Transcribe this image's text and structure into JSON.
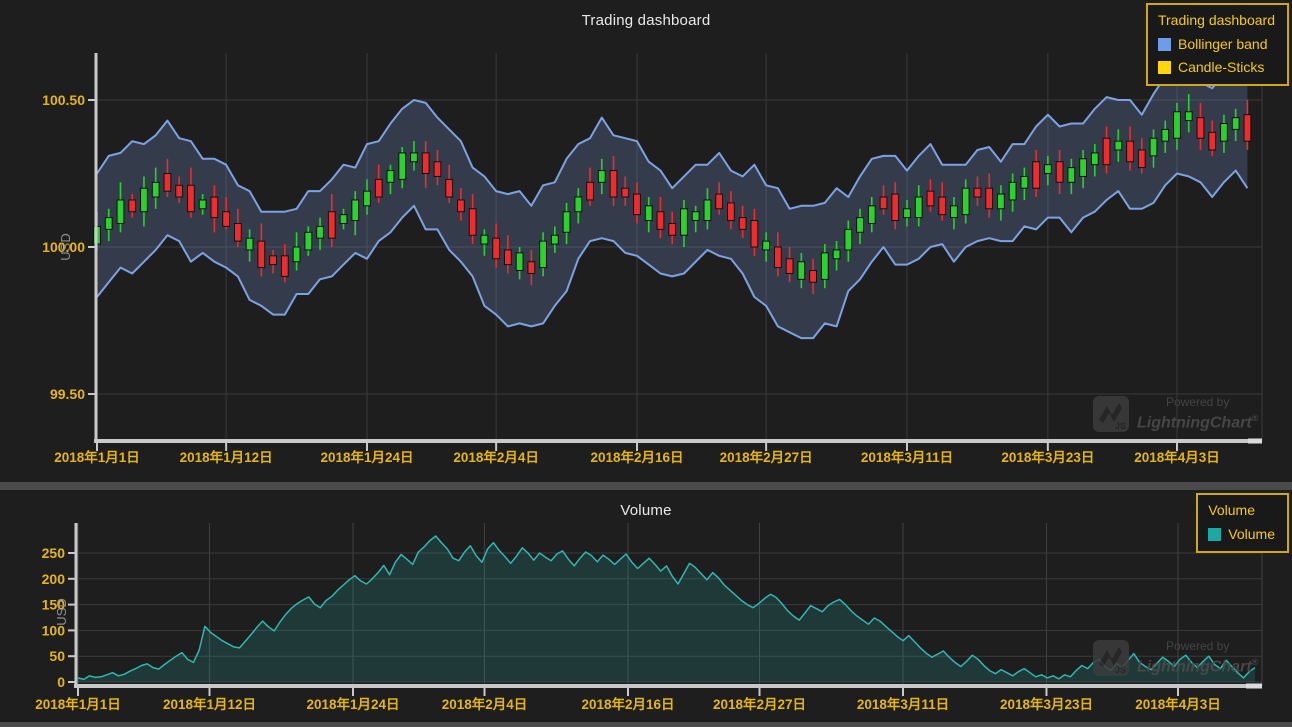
{
  "colors": {
    "page_bg": "#4a4a4a",
    "panel_bg": "#1e1e1e",
    "grid": "#3a3a3a",
    "grid_v": "#424242",
    "axis": "#c9c9c9",
    "tick_label": "#e5b512",
    "legend_text": "#f7ca0e",
    "legend_border": "#cfa90d",
    "title": "#e9e9e9",
    "usd_label": "#8f8f8f",
    "band_fill": "rgba(111,140,198,0.28)",
    "band_line": "#7da2e3",
    "candle_up": "#29d32b",
    "candle_down": "#f02b2b",
    "candle_border": "#101010",
    "volume_line": "#31b7b2",
    "volume_fill": "rgba(40,185,180,0.18)",
    "axis_endcap": "#dcdcdc"
  },
  "watermark": {
    "powered_by": "Powered by",
    "brand": "LightningChart",
    "registered": "®",
    "logo_text": "JS"
  },
  "top_chart": {
    "title": "Trading dashboard",
    "y_axis_label": "USD",
    "legend": {
      "title": "Trading dashboard",
      "items": [
        {
          "label": "Bollinger band",
          "color": "#6f9ce6"
        },
        {
          "label": "Candle-Sticks",
          "color": "#ffd60a"
        }
      ]
    }
  },
  "bottom_chart": {
    "title": "Volume",
    "y_axis_label": "USD",
    "legend": {
      "title": "Volume",
      "items": [
        {
          "label": "Volume",
          "color": "#1ba9a4"
        }
      ]
    }
  },
  "chart_data": [
    {
      "type": "candlestick",
      "title": "Trading dashboard",
      "ylabel": "USD",
      "series": [
        "Bollinger band",
        "Candle-Sticks"
      ],
      "x_ticks": {
        "labels": [
          "2018年1月1日",
          "2018年1月12日",
          "2018年1月24日",
          "2018年2月4日",
          "2018年2月16日",
          "2018年2月27日",
          "2018年3月11日",
          "2018年3月23日",
          "2018年4月3日"
        ],
        "days": [
          0,
          11,
          23,
          34,
          46,
          57,
          69,
          81,
          92
        ]
      },
      "y_ticks": {
        "labels": [
          "100.50",
          "100.00",
          "99.50"
        ],
        "values": [
          100.5,
          100.0,
          99.5
        ]
      },
      "ylim": [
        99.34,
        100.65
      ],
      "candles_ohlc": [
        [
          100.01,
          100.12,
          99.99,
          100.07
        ],
        [
          100.06,
          100.13,
          100.02,
          100.1
        ],
        [
          100.08,
          100.22,
          100.05,
          100.16
        ],
        [
          100.16,
          100.18,
          100.1,
          100.12
        ],
        [
          100.12,
          100.24,
          100.07,
          100.2
        ],
        [
          100.17,
          100.27,
          100.13,
          100.22
        ],
        [
          100.25,
          100.3,
          100.17,
          100.19
        ],
        [
          100.21,
          100.24,
          100.15,
          100.17
        ],
        [
          100.21,
          100.27,
          100.1,
          100.12
        ],
        [
          100.13,
          100.18,
          100.11,
          100.16
        ],
        [
          100.17,
          100.21,
          100.05,
          100.1
        ],
        [
          100.12,
          100.17,
          100.06,
          100.07
        ],
        [
          100.08,
          100.13,
          100.0,
          100.02
        ],
        [
          99.99,
          100.06,
          99.95,
          100.03
        ],
        [
          100.02,
          100.08,
          99.9,
          99.93
        ],
        [
          99.97,
          99.99,
          99.91,
          99.94
        ],
        [
          99.97,
          100.01,
          99.88,
          99.9
        ],
        [
          99.95,
          100.05,
          99.92,
          100.0
        ],
        [
          99.99,
          100.07,
          99.97,
          100.05
        ],
        [
          100.03,
          100.1,
          99.99,
          100.07
        ],
        [
          100.12,
          100.18,
          100.0,
          100.03
        ],
        [
          100.08,
          100.13,
          100.06,
          100.11
        ],
        [
          100.09,
          100.19,
          100.04,
          100.16
        ],
        [
          100.14,
          100.23,
          100.11,
          100.19
        ],
        [
          100.23,
          100.28,
          100.15,
          100.17
        ],
        [
          100.22,
          100.28,
          100.18,
          100.26
        ],
        [
          100.23,
          100.34,
          100.2,
          100.32
        ],
        [
          100.29,
          100.36,
          100.26,
          100.32
        ],
        [
          100.32,
          100.36,
          100.2,
          100.25
        ],
        [
          100.29,
          100.33,
          100.21,
          100.24
        ],
        [
          100.23,
          100.28,
          100.15,
          100.17
        ],
        [
          100.16,
          100.2,
          100.09,
          100.12
        ],
        [
          100.13,
          100.18,
          100.01,
          100.04
        ],
        [
          100.01,
          100.06,
          99.97,
          100.04
        ],
        [
          100.03,
          100.08,
          99.93,
          99.96
        ],
        [
          99.99,
          100.04,
          99.91,
          99.94
        ],
        [
          99.92,
          100.0,
          99.89,
          99.98
        ],
        [
          99.95,
          99.99,
          99.87,
          99.91
        ],
        [
          99.93,
          100.05,
          99.9,
          100.02
        ],
        [
          100.01,
          100.07,
          99.98,
          100.04
        ],
        [
          100.05,
          100.15,
          100.01,
          100.12
        ],
        [
          100.12,
          100.2,
          100.08,
          100.17
        ],
        [
          100.22,
          100.27,
          100.14,
          100.16
        ],
        [
          100.22,
          100.3,
          100.18,
          100.26
        ],
        [
          100.26,
          100.31,
          100.14,
          100.17
        ],
        [
          100.2,
          100.24,
          100.14,
          100.17
        ],
        [
          100.18,
          100.22,
          100.08,
          100.11
        ],
        [
          100.09,
          100.17,
          100.05,
          100.14
        ],
        [
          100.12,
          100.17,
          100.03,
          100.06
        ],
        [
          100.08,
          100.12,
          100.01,
          100.04
        ],
        [
          100.04,
          100.16,
          100.0,
          100.13
        ],
        [
          100.09,
          100.14,
          100.05,
          100.12
        ],
        [
          100.09,
          100.2,
          100.06,
          100.16
        ],
        [
          100.18,
          100.22,
          100.11,
          100.13
        ],
        [
          100.15,
          100.19,
          100.06,
          100.09
        ],
        [
          100.1,
          100.14,
          100.03,
          100.06
        ],
        [
          100.09,
          100.13,
          99.97,
          100.0
        ],
        [
          99.99,
          100.05,
          99.95,
          100.02
        ],
        [
          100.0,
          100.05,
          99.9,
          99.93
        ],
        [
          99.96,
          100.0,
          99.88,
          99.91
        ],
        [
          99.89,
          99.98,
          99.86,
          99.95
        ],
        [
          99.92,
          99.96,
          99.84,
          99.88
        ],
        [
          99.89,
          100.01,
          99.86,
          99.98
        ],
        [
          99.96,
          100.02,
          99.92,
          99.99
        ],
        [
          99.99,
          100.09,
          99.95,
          100.06
        ],
        [
          100.05,
          100.13,
          100.01,
          100.1
        ],
        [
          100.08,
          100.17,
          100.05,
          100.14
        ],
        [
          100.17,
          100.21,
          100.11,
          100.13
        ],
        [
          100.18,
          100.22,
          100.06,
          100.09
        ],
        [
          100.1,
          100.16,
          100.07,
          100.13
        ],
        [
          100.1,
          100.21,
          100.07,
          100.17
        ],
        [
          100.19,
          100.23,
          100.12,
          100.14
        ],
        [
          100.17,
          100.22,
          100.09,
          100.11
        ],
        [
          100.1,
          100.17,
          100.06,
          100.14
        ],
        [
          100.11,
          100.23,
          100.08,
          100.2
        ],
        [
          100.2,
          100.24,
          100.14,
          100.17
        ],
        [
          100.2,
          100.25,
          100.1,
          100.13
        ],
        [
          100.13,
          100.21,
          100.09,
          100.18
        ],
        [
          100.16,
          100.25,
          100.12,
          100.22
        ],
        [
          100.2,
          100.27,
          100.16,
          100.24
        ],
        [
          100.29,
          100.33,
          100.17,
          100.2
        ],
        [
          100.25,
          100.31,
          100.21,
          100.28
        ],
        [
          100.29,
          100.33,
          100.18,
          100.22
        ],
        [
          100.22,
          100.3,
          100.18,
          100.27
        ],
        [
          100.24,
          100.33,
          100.2,
          100.3
        ],
        [
          100.28,
          100.35,
          100.24,
          100.32
        ],
        [
          100.37,
          100.41,
          100.25,
          100.28
        ],
        [
          100.33,
          100.4,
          100.29,
          100.36
        ],
        [
          100.36,
          100.41,
          100.26,
          100.29
        ],
        [
          100.33,
          100.37,
          100.25,
          100.27
        ],
        [
          100.31,
          100.4,
          100.27,
          100.37
        ],
        [
          100.36,
          100.43,
          100.32,
          100.4
        ],
        [
          100.37,
          100.49,
          100.33,
          100.46
        ],
        [
          100.43,
          100.52,
          100.39,
          100.46
        ],
        [
          100.44,
          100.49,
          100.33,
          100.37
        ],
        [
          100.39,
          100.43,
          100.31,
          100.33
        ],
        [
          100.36,
          100.45,
          100.32,
          100.42
        ],
        [
          100.4,
          100.47,
          100.36,
          100.44
        ],
        [
          100.45,
          100.5,
          100.33,
          100.36
        ]
      ],
      "bollinger_upper": [
        100.25,
        100.31,
        100.32,
        100.36,
        100.35,
        100.38,
        100.43,
        100.37,
        100.36,
        100.3,
        100.3,
        100.28,
        100.21,
        100.19,
        100.12,
        100.12,
        100.12,
        100.13,
        100.19,
        100.19,
        100.23,
        100.28,
        100.27,
        100.35,
        100.36,
        100.42,
        100.47,
        100.5,
        100.49,
        100.44,
        100.4,
        100.36,
        100.27,
        100.24,
        100.19,
        100.18,
        100.19,
        100.14,
        100.21,
        100.22,
        100.3,
        100.35,
        100.37,
        100.44,
        100.38,
        100.37,
        100.36,
        100.29,
        100.26,
        100.2,
        100.24,
        100.28,
        100.28,
        100.32,
        100.26,
        100.24,
        100.28,
        100.21,
        100.2,
        100.13,
        100.14,
        100.14,
        100.15,
        100.2,
        100.17,
        100.24,
        100.3,
        100.31,
        100.31,
        100.26,
        100.31,
        100.35,
        100.28,
        100.28,
        100.28,
        100.33,
        100.34,
        100.29,
        100.35,
        100.35,
        100.41,
        100.45,
        100.41,
        100.42,
        100.42,
        100.47,
        100.51,
        100.5,
        100.5,
        100.45,
        100.52,
        100.58,
        100.58,
        100.63,
        100.56,
        100.54,
        100.59,
        100.59,
        100.59
      ],
      "bollinger_lower": [
        99.83,
        99.88,
        99.93,
        99.91,
        99.95,
        99.99,
        100.04,
        100.02,
        99.95,
        99.98,
        99.95,
        99.93,
        99.9,
        99.82,
        99.8,
        99.77,
        99.77,
        99.84,
        99.84,
        99.89,
        99.9,
        99.94,
        99.98,
        99.96,
        100.02,
        100.05,
        100.1,
        100.14,
        100.06,
        100.06,
        99.99,
        99.95,
        99.9,
        99.8,
        99.77,
        99.73,
        99.74,
        99.73,
        99.74,
        99.8,
        99.85,
        99.96,
        100.02,
        100.03,
        100.02,
        99.98,
        99.97,
        99.94,
        99.91,
        99.9,
        99.91,
        99.95,
        99.99,
        99.97,
        99.96,
        99.91,
        99.83,
        99.8,
        99.73,
        99.71,
        99.69,
        99.69,
        99.74,
        99.73,
        99.85,
        99.89,
        99.95,
        100.0,
        99.94,
        99.94,
        99.96,
        100.0,
        100.01,
        99.95,
        100.0,
        100.02,
        100.03,
        100.02,
        100.02,
        100.07,
        100.06,
        100.1,
        100.1,
        100.05,
        100.1,
        100.12,
        100.16,
        100.19,
        100.13,
        100.13,
        100.15,
        100.21,
        100.25,
        100.24,
        100.22,
        100.17,
        100.22,
        100.26,
        100.2
      ]
    },
    {
      "type": "area",
      "title": "Volume",
      "ylabel": "USD",
      "series": [
        "Volume"
      ],
      "x_ticks": {
        "labels": [
          "2018年1月1日",
          "2018年1月12日",
          "2018年1月24日",
          "2018年2月4日",
          "2018年2月16日",
          "2018年2月27日",
          "2018年3月11日",
          "2018年3月23日",
          "2018年4月3日"
        ],
        "days": [
          0,
          11,
          23,
          34,
          46,
          57,
          69,
          81,
          92
        ]
      },
      "y_ticks": {
        "labels": [
          "0",
          "50",
          "100",
          "150",
          "200",
          "250"
        ],
        "values": [
          0,
          50,
          100,
          150,
          200,
          250
        ]
      },
      "ylim": [
        0,
        300
      ],
      "values": [
        8,
        5,
        12,
        9,
        10,
        14,
        18,
        12,
        15,
        21,
        26,
        32,
        35,
        28,
        25,
        34,
        42,
        50,
        57,
        44,
        38,
        62,
        108,
        96,
        88,
        80,
        74,
        68,
        66,
        79,
        92,
        106,
        118,
        107,
        99,
        116,
        131,
        143,
        152,
        159,
        165,
        151,
        144,
        158,
        166,
        178,
        188,
        198,
        206,
        196,
        190,
        200,
        212,
        226,
        208,
        232,
        247,
        238,
        228,
        252,
        262,
        274,
        283,
        270,
        258,
        240,
        235,
        252,
        264,
        245,
        232,
        258,
        270,
        255,
        243,
        230,
        244,
        260,
        250,
        236,
        250,
        242,
        235,
        248,
        254,
        238,
        225,
        240,
        252,
        245,
        233,
        246,
        238,
        228,
        238,
        248,
        232,
        220,
        230,
        240,
        228,
        215,
        225,
        205,
        190,
        210,
        230,
        222,
        210,
        198,
        212,
        202,
        188,
        178,
        168,
        158,
        150,
        144,
        152,
        162,
        170,
        164,
        152,
        138,
        128,
        120,
        134,
        148,
        142,
        136,
        148,
        155,
        160,
        150,
        138,
        128,
        120,
        112,
        124,
        118,
        108,
        98,
        88,
        80,
        90,
        78,
        66,
        56,
        48,
        54,
        60,
        48,
        38,
        30,
        40,
        52,
        44,
        32,
        22,
        16,
        24,
        18,
        12,
        20,
        26,
        18,
        10,
        14,
        8,
        12,
        6,
        14,
        10,
        22,
        32,
        26,
        38,
        44,
        30,
        22,
        36,
        28,
        42,
        55,
        38,
        30,
        24,
        36,
        48,
        40,
        30,
        44,
        52,
        38,
        28,
        40,
        50,
        34,
        26,
        42,
        30,
        18,
        8,
        20,
        28
      ]
    }
  ]
}
